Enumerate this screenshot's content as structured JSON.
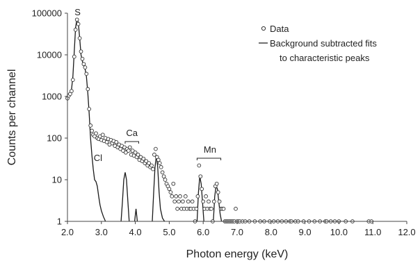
{
  "chart_data": {
    "type": "scatter",
    "title": "",
    "xlabel": "Photon energy (keV)",
    "ylabel": "Counts per channel",
    "xlim": [
      2.0,
      12.0
    ],
    "ylim": [
      1,
      100000
    ],
    "yscale": "log",
    "grid": false,
    "legend_position": "top-right",
    "x_ticks": [
      "2.0",
      "3.0",
      "4.0",
      "5.0",
      "6.0",
      "7.0",
      "8.0",
      "9.0",
      "10.0",
      "11.0",
      "12.0"
    ],
    "y_ticks": [
      "1",
      "10",
      "100",
      "1000",
      "10000",
      "100000"
    ],
    "legend": {
      "data": "Data",
      "fit_line1": "Background subtracted fits",
      "fit_line2": "to characteristic peaks"
    },
    "annotations": [
      {
        "label": "S",
        "x": 2.3
      },
      {
        "label": "Cl",
        "x": 2.9
      },
      {
        "label": "Ca",
        "x": 3.9
      },
      {
        "label": "Mn",
        "x": 6.2
      }
    ],
    "series": [
      {
        "name": "Data",
        "marker": "open-circle",
        "points": [
          [
            2.0,
            900
          ],
          [
            2.04,
            1050
          ],
          [
            2.08,
            1150
          ],
          [
            2.12,
            1350
          ],
          [
            2.16,
            2500
          ],
          [
            2.2,
            9000
          ],
          [
            2.24,
            40000
          ],
          [
            2.28,
            70000
          ],
          [
            2.32,
            55000
          ],
          [
            2.36,
            25000
          ],
          [
            2.4,
            12000
          ],
          [
            2.44,
            8000
          ],
          [
            2.48,
            6000
          ],
          [
            2.52,
            5000
          ],
          [
            2.56,
            3500
          ],
          [
            2.6,
            1500
          ],
          [
            2.64,
            500
          ],
          [
            2.68,
            200
          ],
          [
            2.72,
            150
          ],
          [
            2.76,
            120
          ],
          [
            2.8,
            110
          ],
          [
            2.84,
            130
          ],
          [
            2.88,
            100
          ],
          [
            2.92,
            95
          ],
          [
            2.96,
            110
          ],
          [
            3.0,
            90
          ],
          [
            3.04,
            120
          ],
          [
            3.08,
            85
          ],
          [
            3.12,
            100
          ],
          [
            3.16,
            80
          ],
          [
            3.2,
            95
          ],
          [
            3.24,
            70
          ],
          [
            3.28,
            90
          ],
          [
            3.32,
            75
          ],
          [
            3.36,
            85
          ],
          [
            3.4,
            65
          ],
          [
            3.44,
            80
          ],
          [
            3.48,
            60
          ],
          [
            3.52,
            70
          ],
          [
            3.56,
            55
          ],
          [
            3.6,
            65
          ],
          [
            3.64,
            50
          ],
          [
            3.68,
            60
          ],
          [
            3.72,
            45
          ],
          [
            3.76,
            55
          ],
          [
            3.8,
            50
          ],
          [
            3.84,
            60
          ],
          [
            3.88,
            40
          ],
          [
            3.92,
            50
          ],
          [
            3.96,
            38
          ],
          [
            4.0,
            45
          ],
          [
            4.04,
            35
          ],
          [
            4.08,
            40
          ],
          [
            4.12,
            30
          ],
          [
            4.16,
            35
          ],
          [
            4.2,
            28
          ],
          [
            4.24,
            32
          ],
          [
            4.28,
            25
          ],
          [
            4.32,
            28
          ],
          [
            4.36,
            22
          ],
          [
            4.4,
            25
          ],
          [
            4.44,
            20
          ],
          [
            4.48,
            22
          ],
          [
            4.52,
            18
          ],
          [
            4.56,
            40
          ],
          [
            4.6,
            55
          ],
          [
            4.64,
            35
          ],
          [
            4.68,
            30
          ],
          [
            4.72,
            25
          ],
          [
            4.76,
            20
          ],
          [
            4.8,
            15
          ],
          [
            4.84,
            12
          ],
          [
            4.88,
            10
          ],
          [
            4.92,
            8
          ],
          [
            4.96,
            7
          ],
          [
            5.0,
            6
          ],
          [
            5.04,
            5
          ],
          [
            5.08,
            4
          ],
          [
            5.12,
            8
          ],
          [
            5.16,
            3
          ],
          [
            5.2,
            4
          ],
          [
            5.24,
            2
          ],
          [
            5.28,
            3
          ],
          [
            5.32,
            4
          ],
          [
            5.36,
            2
          ],
          [
            5.4,
            3
          ],
          [
            5.44,
            2
          ],
          [
            5.48,
            4
          ],
          [
            5.52,
            2
          ],
          [
            5.56,
            3
          ],
          [
            5.6,
            2
          ],
          [
            5.64,
            2
          ],
          [
            5.68,
            3
          ],
          [
            5.72,
            2
          ],
          [
            5.76,
            1
          ],
          [
            5.8,
            2
          ],
          [
            5.84,
            4
          ],
          [
            5.88,
            22
          ],
          [
            5.92,
            12
          ],
          [
            5.96,
            6
          ],
          [
            6.0,
            3
          ],
          [
            6.04,
            2
          ],
          [
            6.08,
            4
          ],
          [
            6.12,
            2
          ],
          [
            6.16,
            3
          ],
          [
            6.2,
            2
          ],
          [
            6.24,
            2
          ],
          [
            6.28,
            1
          ],
          [
            6.32,
            3
          ],
          [
            6.36,
            7
          ],
          [
            6.4,
            8
          ],
          [
            6.44,
            5
          ],
          [
            6.48,
            3
          ],
          [
            6.52,
            2
          ],
          [
            6.56,
            2
          ],
          [
            6.6,
            2
          ],
          [
            6.64,
            1
          ],
          [
            6.68,
            1
          ],
          [
            6.72,
            1
          ],
          [
            6.76,
            1
          ],
          [
            6.8,
            1
          ],
          [
            6.84,
            1
          ],
          [
            6.88,
            1
          ],
          [
            6.92,
            1
          ],
          [
            6.96,
            2
          ],
          [
            7.0,
            1
          ],
          [
            7.04,
            1
          ],
          [
            7.08,
            1
          ],
          [
            7.16,
            1
          ],
          [
            7.24,
            1
          ],
          [
            7.36,
            1
          ],
          [
            7.52,
            1
          ],
          [
            7.68,
            1
          ],
          [
            7.8,
            1
          ],
          [
            7.96,
            1
          ],
          [
            8.08,
            1
          ],
          [
            8.2,
            1
          ],
          [
            8.32,
            1
          ],
          [
            8.44,
            1
          ],
          [
            8.56,
            1
          ],
          [
            8.6,
            1
          ],
          [
            8.72,
            1
          ],
          [
            8.8,
            1
          ],
          [
            8.96,
            1
          ],
          [
            9.12,
            1
          ],
          [
            9.28,
            1
          ],
          [
            9.44,
            1
          ],
          [
            9.6,
            1
          ],
          [
            9.64,
            1
          ],
          [
            9.76,
            1
          ],
          [
            9.88,
            1
          ],
          [
            10.0,
            1
          ],
          [
            10.2,
            1
          ],
          [
            10.4,
            1
          ],
          [
            10.88,
            1
          ],
          [
            10.96,
            1
          ]
        ]
      },
      {
        "name": "Background subtracted fits to characteristic peaks",
        "marker": "line",
        "segments": [
          [
            [
              2.0,
              800
            ],
            [
              2.04,
              1000
            ],
            [
              2.08,
              1200
            ],
            [
              2.12,
              1500
            ],
            [
              2.16,
              3000
            ],
            [
              2.2,
              12000
            ],
            [
              2.24,
              45000
            ],
            [
              2.28,
              75000
            ],
            [
              2.32,
              60000
            ],
            [
              2.36,
              25000
            ],
            [
              2.4,
              10000
            ],
            [
              2.44,
              7000
            ],
            [
              2.48,
              5500
            ],
            [
              2.52,
              4500
            ],
            [
              2.56,
              3000
            ],
            [
              2.6,
              1200
            ],
            [
              2.64,
              400
            ],
            [
              2.68,
              100
            ],
            [
              2.72,
              40
            ],
            [
              2.76,
              18
            ],
            [
              2.8,
              10
            ],
            [
              2.84,
              9
            ],
            [
              2.88,
              7
            ],
            [
              2.92,
              4
            ],
            [
              2.96,
              2.5
            ],
            [
              3.0,
              1.8
            ],
            [
              3.06,
              1.3
            ],
            [
              3.12,
              1.0
            ]
          ],
          [
            [
              3.58,
              1
            ],
            [
              3.62,
              3
            ],
            [
              3.66,
              10
            ],
            [
              3.7,
              15
            ],
            [
              3.74,
              10
            ],
            [
              3.78,
              3
            ],
            [
              3.82,
              1
            ]
          ],
          [
            [
              3.98,
              1
            ],
            [
              4.02,
              2
            ],
            [
              4.06,
              1
            ]
          ],
          [
            [
              4.5,
              1
            ],
            [
              4.54,
              5
            ],
            [
              4.58,
              20
            ],
            [
              4.62,
              38
            ],
            [
              4.66,
              20
            ],
            [
              4.7,
              5
            ],
            [
              4.74,
              2
            ],
            [
              4.8,
              1.2
            ],
            [
              4.86,
              1
            ]
          ],
          [
            [
              5.82,
              1
            ],
            [
              5.86,
              5
            ],
            [
              5.9,
              12
            ],
            [
              5.94,
              8
            ],
            [
              5.98,
              3
            ],
            [
              6.02,
              1
            ]
          ],
          [
            [
              6.3,
              1
            ],
            [
              6.34,
              4
            ],
            [
              6.38,
              7
            ],
            [
              6.42,
              6
            ],
            [
              6.46,
              3
            ],
            [
              6.5,
              1.5
            ],
            [
              6.54,
              1
            ]
          ]
        ]
      }
    ]
  }
}
